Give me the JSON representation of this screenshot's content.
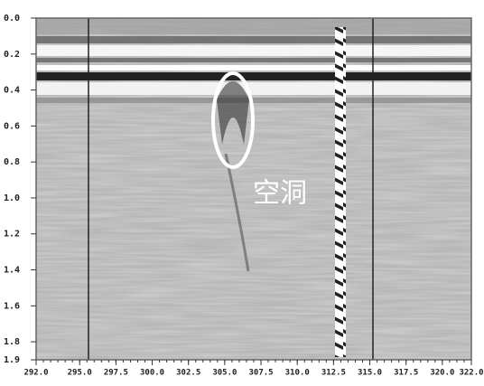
{
  "chart_data": {
    "type": "radargram",
    "annotation": "空洞",
    "xlim": [
      292,
      322
    ],
    "ylim": [
      0,
      1.9
    ],
    "xticks": [
      {
        "value": 292,
        "label": "292.0"
      },
      {
        "value": 295,
        "label": "295.0"
      },
      297.5,
      {
        "value": 300,
        "label": "300.0"
      },
      302.5,
      {
        "value": 305,
        "label": "305.0"
      },
      307.5,
      {
        "value": 310,
        "label": "310.0"
      },
      312.5,
      {
        "value": 315,
        "label": "315.0"
      },
      317.5,
      {
        "value": 320,
        "label": "320.0"
      },
      {
        "value": 322,
        "label": "322.0"
      }
    ],
    "yticks": [
      {
        "value": 0,
        "label": "0.0"
      },
      0.2,
      0.4,
      0.6,
      0.8,
      {
        "value": 1,
        "label": "1.0"
      },
      1.2,
      1.4,
      1.6,
      1.8,
      1.9
    ]
  }
}
